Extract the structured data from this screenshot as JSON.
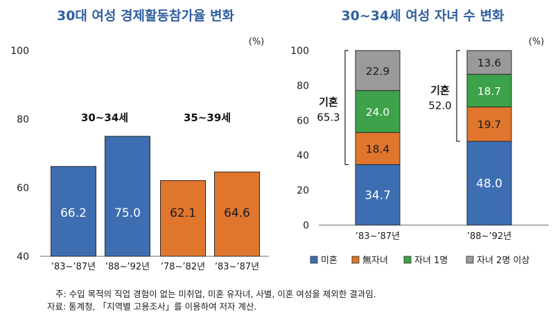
{
  "chart_data": [
    {
      "type": "bar",
      "title": "30대 여성 경제활동참가율 변화",
      "unit": "(%)",
      "ylim": [
        40,
        100
      ],
      "yticks": [
        40,
        60,
        80,
        100
      ],
      "groups": [
        {
          "label": "30~34세",
          "color": "#3d6eb2",
          "bars": [
            {
              "category": "’83~’87년",
              "value": 66.2
            },
            {
              "category": "’88~’92년",
              "value": 75.0
            }
          ]
        },
        {
          "label": "35~39세",
          "color": "#e0752d",
          "bars": [
            {
              "category": "’78~’82년",
              "value": 62.1
            },
            {
              "category": "’83~’87년",
              "value": 64.6
            }
          ]
        }
      ]
    },
    {
      "type": "stacked-bar",
      "title": "30~34세 여성 자녀 수 변화",
      "unit": "(%)",
      "ylim": [
        0,
        100
      ],
      "yticks": [
        0,
        20,
        40,
        60,
        80,
        100
      ],
      "categories": [
        "’83~’87년",
        "’88~’92년"
      ],
      "series": [
        {
          "name": "미혼",
          "color": "#3d6eb2",
          "values": [
            34.7,
            48.0
          ]
        },
        {
          "name": "無자녀",
          "color": "#e0752d",
          "values": [
            18.4,
            19.7
          ]
        },
        {
          "name": "자녀 1명",
          "color": "#3da24a",
          "values": [
            24.0,
            18.7
          ]
        },
        {
          "name": "자녀 2명 이상",
          "color": "#9a9a9a",
          "values": [
            22.9,
            13.6
          ]
        }
      ],
      "brackets": [
        {
          "label": "기혼",
          "value": "65.3"
        },
        {
          "label": "기혼",
          "value": "52.0"
        }
      ]
    }
  ],
  "notes": {
    "note1": "주: 수입 목적의 직업 경험이 없는 미취업, 미혼 유자녀, 사별, 이혼 여성을 제외한 결과임.",
    "note2": "자료: 통계청, 「지역별 고용조사」를 이용하여 저자 계산."
  }
}
